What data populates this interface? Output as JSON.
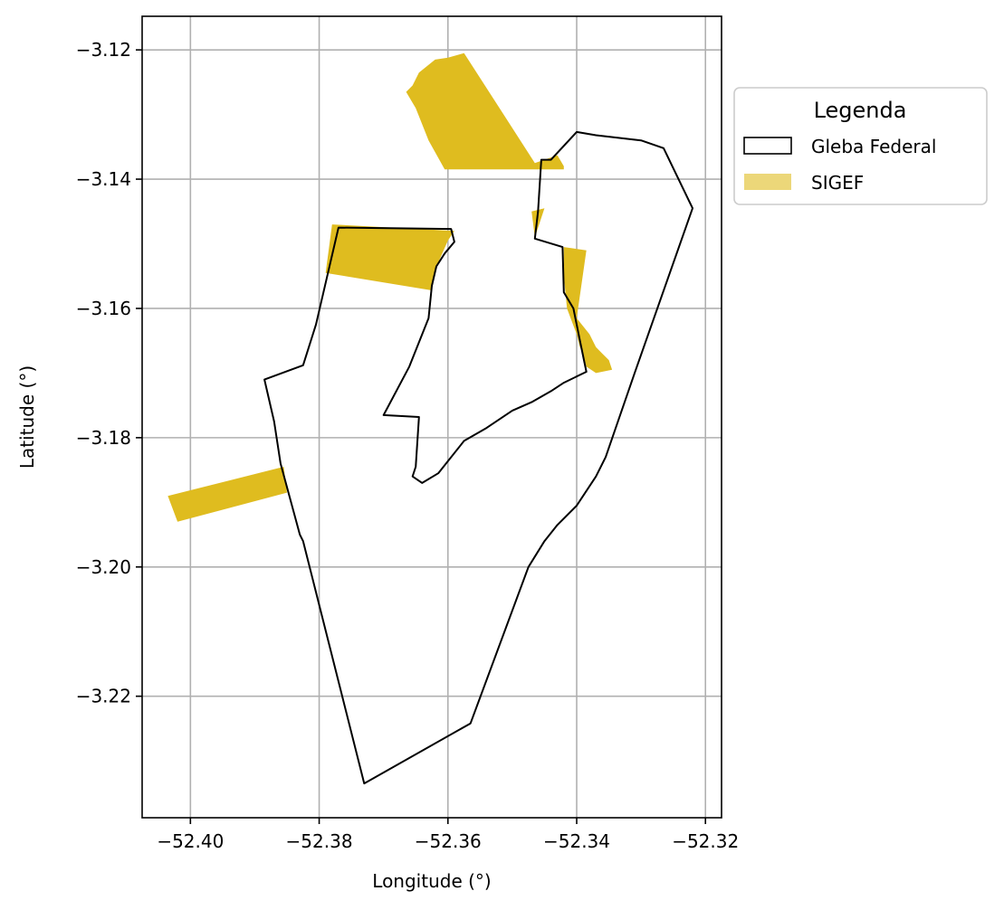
{
  "chart_data": {
    "type": "map",
    "xlabel": "Longitude (°)",
    "ylabel": "Latitude (°)",
    "xlim": [
      -52.4075,
      -52.3175
    ],
    "ylim": [
      -3.2388,
      -3.1148
    ],
    "grid": true,
    "x_ticks": [
      -52.4,
      -52.38,
      -52.36,
      -52.34,
      -52.32
    ],
    "x_tick_labels": [
      "−52.40",
      "−52.38",
      "−52.36",
      "−52.34",
      "−52.32"
    ],
    "y_ticks": [
      -3.12,
      -3.14,
      -3.16,
      -3.18,
      -3.2,
      -3.22
    ],
    "y_tick_labels": [
      "−3.12",
      "−3.14",
      "−3.16",
      "−3.18",
      "−3.20",
      "−3.22"
    ],
    "legend": {
      "title": "Legenda",
      "placement": "outside-upper-right",
      "entries": [
        {
          "label": "Gleba Federal",
          "style": "outline",
          "color": "#000000"
        },
        {
          "label": "SIGEF",
          "style": "fill",
          "color": "#DFBC1F",
          "alpha": 0.6
        }
      ]
    },
    "colors": {
      "gleba_edge": "#000000",
      "sigef_fill": "#DFBC1F",
      "grid": "#b0b0b0"
    },
    "series": [
      {
        "name": "SIGEF",
        "kind": "polygons",
        "polygons": [
          [
            [
              -52.3645,
              -3.1235
            ],
            [
              -52.362,
              -3.1215
            ],
            [
              -52.36,
              -3.1212
            ],
            [
              -52.3575,
              -3.1205
            ],
            [
              -52.3465,
              -3.1375
            ],
            [
              -52.343,
              -3.1363
            ],
            [
              -52.342,
              -3.138
            ],
            [
              -52.342,
              -3.1385
            ],
            [
              -52.3605,
              -3.1385
            ],
            [
              -52.363,
              -3.134
            ],
            [
              -52.365,
              -3.129
            ],
            [
              -52.3665,
              -3.1265
            ],
            [
              -52.3655,
              -3.1255
            ]
          ],
          [
            [
              -52.378,
              -3.147
            ],
            [
              -52.359,
              -3.148
            ],
            [
              -52.36,
              -3.1495
            ],
            [
              -52.362,
              -3.154
            ],
            [
              -52.3625,
              -3.1572
            ],
            [
              -52.379,
              -3.1545
            ]
          ],
          [
            [
              -52.347,
              -3.145
            ],
            [
              -52.345,
              -3.1445
            ],
            [
              -52.3465,
              -3.149
            ]
          ],
          [
            [
              -52.342,
              -3.1505
            ],
            [
              -52.3385,
              -3.151
            ],
            [
              -52.34,
              -3.1615
            ],
            [
              -52.338,
              -3.164
            ],
            [
              -52.337,
              -3.166
            ],
            [
              -52.336,
              -3.167
            ],
            [
              -52.335,
              -3.168
            ],
            [
              -52.3345,
              -3.1695
            ],
            [
              -52.337,
              -3.17
            ],
            [
              -52.3385,
              -3.169
            ],
            [
              -52.339,
              -3.167
            ],
            [
              -52.3395,
              -3.166
            ],
            [
              -52.34,
              -3.164
            ],
            [
              -52.3415,
              -3.16
            ],
            [
              -52.342,
              -3.155
            ]
          ],
          [
            [
              -52.4035,
              -3.189
            ],
            [
              -52.402,
              -3.193
            ],
            [
              -52.385,
              -3.1885
            ],
            [
              -52.3855,
              -3.1845
            ]
          ]
        ]
      },
      {
        "name": "Gleba Federal",
        "kind": "outline",
        "rings": [
          [
            [
              -52.377,
              -3.1475
            ],
            [
              -52.3595,
              -3.1477
            ],
            [
              -52.359,
              -3.1497
            ],
            [
              -52.3605,
              -3.1515
            ],
            [
              -52.3618,
              -3.1535
            ],
            [
              -52.3625,
              -3.1565
            ],
            [
              -52.363,
              -3.1615
            ],
            [
              -52.366,
              -3.169
            ],
            [
              -52.37,
              -3.1765
            ],
            [
              -52.3645,
              -3.1768
            ],
            [
              -52.365,
              -3.1845
            ],
            [
              -52.3655,
              -3.186
            ],
            [
              -52.364,
              -3.187
            ],
            [
              -52.3615,
              -3.1855
            ],
            [
              -52.3575,
              -3.1805
            ],
            [
              -52.354,
              -3.1785
            ],
            [
              -52.35,
              -3.1758
            ],
            [
              -52.347,
              -3.1745
            ],
            [
              -52.344,
              -3.1728
            ],
            [
              -52.342,
              -3.1715
            ],
            [
              -52.3385,
              -3.1698
            ],
            [
              -52.3395,
              -3.165
            ],
            [
              -52.3405,
              -3.16
            ],
            [
              -52.342,
              -3.1575
            ],
            [
              -52.3422,
              -3.1505
            ],
            [
              -52.3465,
              -3.1492
            ],
            [
              -52.346,
              -3.145
            ],
            [
              -52.3455,
              -3.137
            ],
            [
              -52.344,
              -3.137
            ],
            [
              -52.34,
              -3.1327
            ],
            [
              -52.337,
              -3.1332
            ],
            [
              -52.33,
              -3.134
            ],
            [
              -52.3265,
              -3.1352
            ],
            [
              -52.322,
              -3.1445
            ],
            [
              -52.331,
              -3.17
            ],
            [
              -52.3355,
              -3.183
            ],
            [
              -52.337,
              -3.186
            ],
            [
              -52.34,
              -3.1905
            ],
            [
              -52.343,
              -3.1935
            ],
            [
              -52.345,
              -3.196
            ],
            [
              -52.3475,
              -3.2
            ],
            [
              -52.3565,
              -3.2242
            ],
            [
              -52.373,
              -3.2335
            ],
            [
              -52.3825,
              -3.196
            ],
            [
              -52.383,
              -3.195
            ],
            [
              -52.386,
              -3.184
            ],
            [
              -52.387,
              -3.1775
            ],
            [
              -52.3885,
              -3.171
            ],
            [
              -52.3825,
              -3.1688
            ],
            [
              -52.3805,
              -3.1625
            ],
            [
              -52.377,
              -3.1475
            ]
          ]
        ]
      }
    ]
  }
}
